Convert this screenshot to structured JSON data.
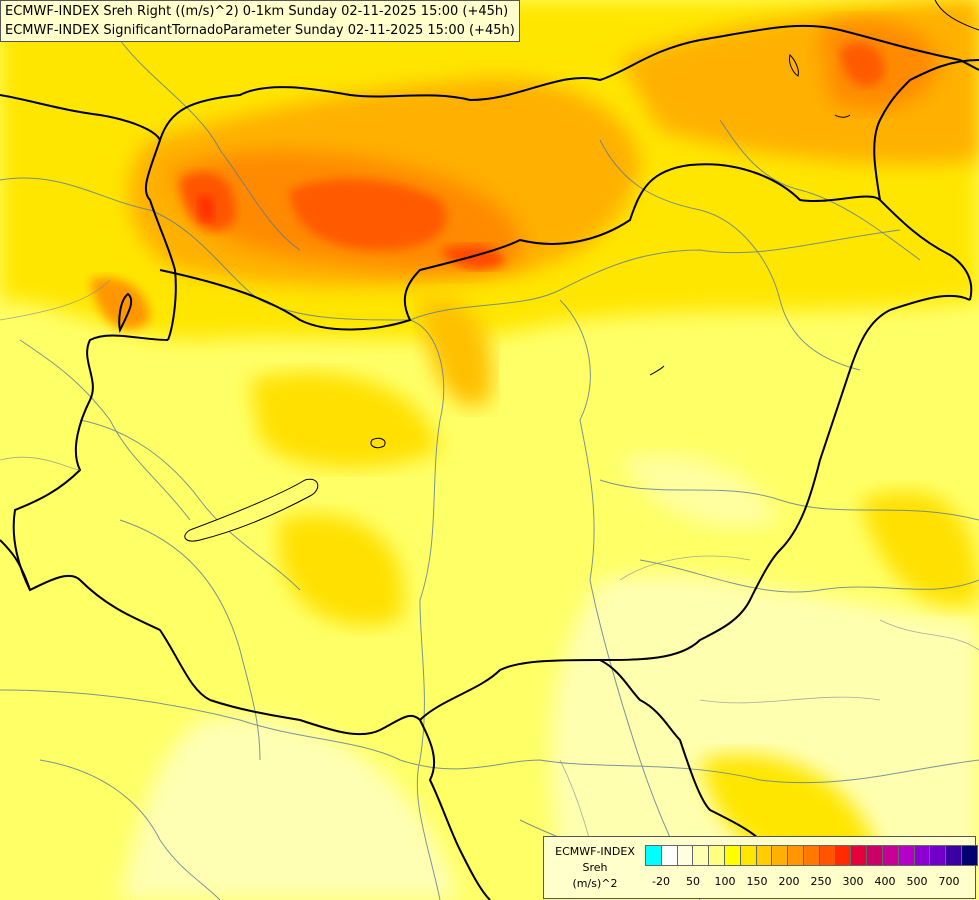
{
  "title": {
    "line1": "ECMWF-INDEX Sreh Right ((m/s)^2) 0-1km Sunday 02-11-2025 15:00 (+45h)",
    "line2": "ECMWF-INDEX SignificantTornadoParameter Sunday 02-11-2025 15:00 (+45h)"
  },
  "legend": {
    "source": "ECMWF-INDEX",
    "parameter": "Sreh",
    "unit": "(m/s)^2",
    "colors": [
      "#00ffff",
      "#ffffff",
      "#ffffe0",
      "#ffffb4",
      "#ffff80",
      "#ffff00",
      "#ffe600",
      "#ffcc00",
      "#ffb000",
      "#ff9600",
      "#ff7800",
      "#ff5500",
      "#ff2a00",
      "#e6003c",
      "#cc0066",
      "#c80096",
      "#b400c8",
      "#8c00d2",
      "#6e00c8",
      "#3c00a0",
      "#00006e"
    ],
    "ticks": [
      "-20",
      "50",
      "100",
      "150",
      "200",
      "250",
      "300",
      "400",
      "500",
      "700"
    ]
  },
  "colors": {
    "background": "#ffff70",
    "border": "#000000",
    "river": "#5a7a9a"
  }
}
